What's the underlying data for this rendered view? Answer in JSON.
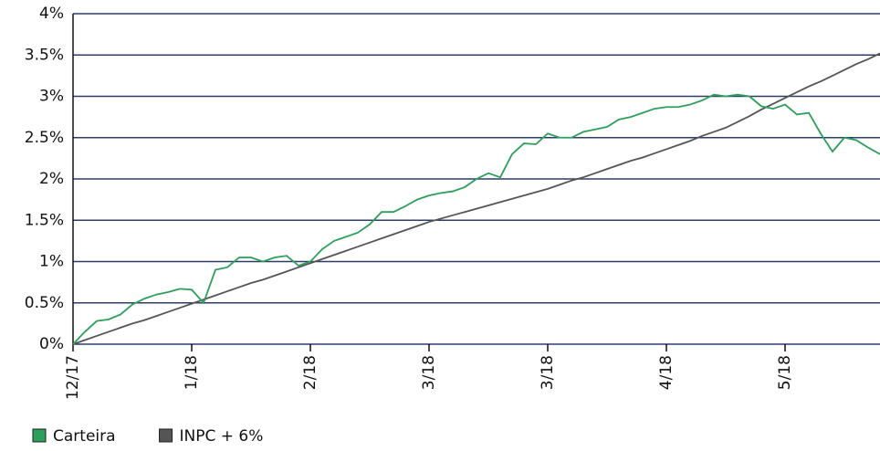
{
  "chart_data": {
    "type": "line",
    "categories": [
      "12/17",
      null,
      null,
      null,
      null,
      null,
      null,
      null,
      null,
      null,
      "1/18",
      null,
      null,
      null,
      null,
      null,
      null,
      null,
      null,
      null,
      "2/18",
      null,
      null,
      null,
      null,
      null,
      null,
      null,
      null,
      null,
      "3/18",
      null,
      null,
      null,
      null,
      null,
      null,
      null,
      null,
      null,
      "3/18",
      null,
      null,
      null,
      null,
      null,
      null,
      null,
      null,
      null,
      "4/18",
      null,
      null,
      null,
      null,
      null,
      null,
      null,
      null,
      null,
      "5/18",
      null,
      null,
      null,
      null,
      null,
      null,
      null,
      null
    ],
    "series": [
      {
        "name": "Carteira",
        "color": "#2e9e5b",
        "values": [
          0,
          0.15,
          0.28,
          0.3,
          0.36,
          0.48,
          0.55,
          0.6,
          0.63,
          0.67,
          0.66,
          0.5,
          0.9,
          0.93,
          1.05,
          1.05,
          1.0,
          1.05,
          1.07,
          0.95,
          1.0,
          1.15,
          1.25,
          1.3,
          1.35,
          1.45,
          1.6,
          1.6,
          1.67,
          1.75,
          1.8,
          1.83,
          1.85,
          1.9,
          2.0,
          2.07,
          2.02,
          2.3,
          2.43,
          2.42,
          2.55,
          2.5,
          2.5,
          2.57,
          2.6,
          2.63,
          2.72,
          2.75,
          2.8,
          2.85,
          2.87,
          2.87,
          2.9,
          2.95,
          3.02,
          3.0,
          3.02,
          3.0,
          2.88,
          2.85,
          2.9,
          2.78,
          2.8,
          2.55,
          2.33,
          2.5,
          2.47,
          2.38,
          2.3
        ]
      },
      {
        "name": "INPC + 6%",
        "color": "#555555",
        "values": [
          0,
          0.05,
          0.1,
          0.15,
          0.2,
          0.25,
          0.29,
          0.34,
          0.39,
          0.44,
          0.49,
          0.54,
          0.59,
          0.64,
          0.69,
          0.74,
          0.78,
          0.83,
          0.88,
          0.93,
          0.98,
          1.03,
          1.08,
          1.13,
          1.18,
          1.23,
          1.28,
          1.33,
          1.38,
          1.43,
          1.48,
          1.52,
          1.56,
          1.6,
          1.64,
          1.68,
          1.72,
          1.76,
          1.8,
          1.84,
          1.88,
          1.93,
          1.98,
          2.02,
          2.07,
          2.12,
          2.17,
          2.22,
          2.26,
          2.31,
          2.36,
          2.41,
          2.46,
          2.52,
          2.57,
          2.62,
          2.69,
          2.76,
          2.84,
          2.91,
          2.98,
          3.05,
          3.12,
          3.18,
          3.25,
          3.32,
          3.39,
          3.45,
          3.52
        ]
      }
    ],
    "ylim": [
      0,
      4
    ],
    "yticks": [
      {
        "value": 0,
        "label": "0%"
      },
      {
        "value": 0.5,
        "label": "0.5%"
      },
      {
        "value": 1,
        "label": "1%"
      },
      {
        "value": 1.5,
        "label": "1.5%"
      },
      {
        "value": 2,
        "label": "2%"
      },
      {
        "value": 2.5,
        "label": "2.5%"
      },
      {
        "value": 3,
        "label": "3%"
      },
      {
        "value": 3.5,
        "label": "3.5%"
      },
      {
        "value": 4,
        "label": "4%"
      }
    ],
    "grid": true,
    "legend": "bottom-left"
  }
}
